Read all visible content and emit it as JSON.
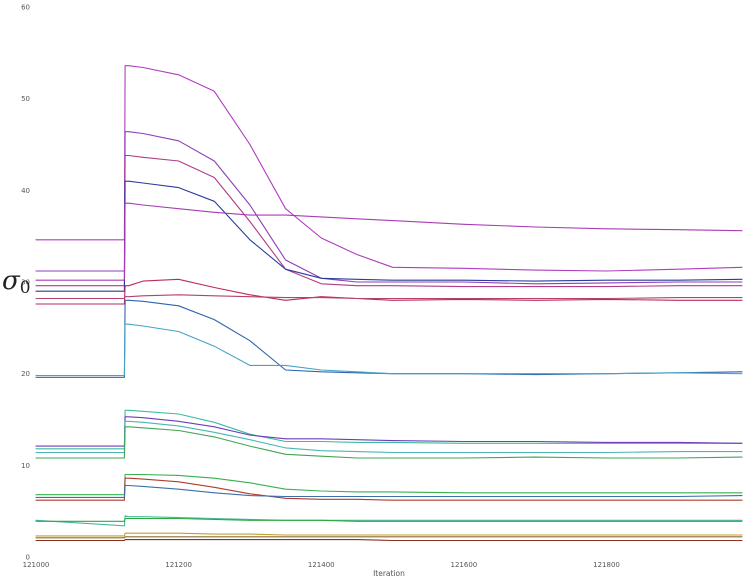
{
  "chart_data": {
    "type": "line",
    "xlabel": "Iteration",
    "ylabel": "σ",
    "ylabel_subscript": "0",
    "xlim": [
      121000,
      121990
    ],
    "ylim": [
      0,
      60
    ],
    "xticks": [
      121000,
      121200,
      121400,
      121600,
      121800
    ],
    "yticks": [
      0,
      10,
      20,
      30,
      40,
      50,
      60
    ],
    "grid": false,
    "x": [
      121000,
      121124,
      121125,
      121130,
      121150,
      121200,
      121250,
      121300,
      121350,
      121400,
      121450,
      121500,
      121600,
      121700,
      121800,
      121900,
      121990
    ],
    "series": [
      {
        "color": "#b03cc0",
        "values": [
          34.6,
          34.6,
          53.6,
          53.6,
          53.4,
          52.6,
          50.8,
          45.0,
          38.0,
          34.8,
          33.0,
          31.6,
          31.5,
          31.3,
          31.2,
          31.4,
          31.6
        ]
      },
      {
        "color": "#8a40b6",
        "values": [
          31.2,
          31.2,
          46.4,
          46.4,
          46.2,
          45.4,
          43.2,
          38.4,
          32.4,
          30.4,
          30.0,
          30.0,
          30.0,
          29.8,
          29.9,
          30.0,
          30.0
        ]
      },
      {
        "color": "#b03c84",
        "values": [
          29.6,
          29.6,
          43.8,
          43.8,
          43.6,
          43.2,
          41.4,
          36.6,
          31.4,
          29.8,
          29.6,
          29.6,
          29.5,
          29.5,
          29.5,
          29.6,
          29.6
        ]
      },
      {
        "color": "#2a3c9c",
        "values": [
          29.0,
          29.0,
          41.0,
          41.0,
          40.8,
          40.3,
          38.8,
          34.6,
          31.4,
          30.4,
          30.3,
          30.2,
          30.2,
          30.1,
          30.2,
          30.2,
          30.3
        ]
      },
      {
        "color": "#a83cb4",
        "values": [
          30.2,
          30.2,
          38.6,
          38.6,
          38.4,
          38.0,
          37.6,
          37.3,
          37.3,
          37.1,
          36.9,
          36.7,
          36.3,
          36.0,
          35.8,
          35.7,
          35.6
        ]
      },
      {
        "color": "#b62c5a",
        "values": [
          27.6,
          27.6,
          29.6,
          29.6,
          30.1,
          30.3,
          29.4,
          28.6,
          28.0,
          28.4,
          28.2,
          28.0,
          28.1,
          28.0,
          28.1,
          28.0,
          28.0
        ]
      },
      {
        "color": "#b64070",
        "values": [
          28.2,
          28.2,
          28.4,
          28.4,
          28.5,
          28.6,
          28.5,
          28.4,
          28.3,
          28.3,
          28.2,
          28.2,
          28.2,
          28.2,
          28.2,
          28.3,
          28.3
        ]
      },
      {
        "color": "#2e64b0",
        "values": [
          19.6,
          19.6,
          28.0,
          28.0,
          27.9,
          27.4,
          25.9,
          23.6,
          20.4,
          20.2,
          20.1,
          20.0,
          20.0,
          19.9,
          20.0,
          20.1,
          20.2
        ]
      },
      {
        "color": "#44a4c4",
        "values": [
          19.8,
          19.8,
          25.4,
          25.4,
          25.2,
          24.6,
          23.0,
          20.9,
          20.9,
          20.4,
          20.2,
          20.0,
          20.0,
          20.0,
          20.0,
          20.1,
          20.0
        ]
      },
      {
        "color": "#3ebaa0",
        "values": [
          11.8,
          11.8,
          16.0,
          16.0,
          15.9,
          15.6,
          14.7,
          13.4,
          12.6,
          12.6,
          12.5,
          12.5,
          12.4,
          12.4,
          12.4,
          12.4,
          12.4
        ]
      },
      {
        "color": "#6e3cbc",
        "values": [
          12.1,
          12.1,
          15.3,
          15.3,
          15.2,
          14.8,
          14.2,
          13.3,
          12.9,
          12.9,
          12.8,
          12.7,
          12.6,
          12.6,
          12.5,
          12.5,
          12.4
        ]
      },
      {
        "color": "#4eb4b4",
        "values": [
          11.4,
          11.4,
          14.8,
          14.8,
          14.7,
          14.3,
          13.6,
          12.8,
          11.9,
          11.6,
          11.5,
          11.4,
          11.4,
          11.4,
          11.4,
          11.5,
          11.5
        ]
      },
      {
        "color": "#40a454",
        "values": [
          10.8,
          10.8,
          14.2,
          14.2,
          14.1,
          13.8,
          13.1,
          12.1,
          11.2,
          11.0,
          10.8,
          10.8,
          10.8,
          10.9,
          10.8,
          10.8,
          10.9
        ]
      },
      {
        "color": "#38b04e",
        "values": [
          6.8,
          6.8,
          9.0,
          9.0,
          9.0,
          8.9,
          8.6,
          8.1,
          7.4,
          7.2,
          7.1,
          7.1,
          7.0,
          7.0,
          7.0,
          7.0,
          7.0
        ]
      },
      {
        "color": "#b03a30",
        "values": [
          6.2,
          6.2,
          8.6,
          8.6,
          8.5,
          8.2,
          7.6,
          6.9,
          6.4,
          6.3,
          6.3,
          6.2,
          6.2,
          6.2,
          6.2,
          6.2,
          6.2
        ]
      },
      {
        "color": "#3a70a8",
        "values": [
          6.5,
          6.5,
          7.8,
          7.8,
          7.7,
          7.4,
          7.0,
          6.7,
          6.6,
          6.6,
          6.6,
          6.6,
          6.6,
          6.6,
          6.6,
          6.6,
          6.7
        ]
      },
      {
        "color": "#4ab89a",
        "values": [
          4.0,
          3.4,
          4.5,
          4.4,
          4.4,
          4.3,
          4.2,
          4.1,
          4.0,
          4.0,
          4.0,
          4.0,
          4.0,
          4.0,
          4.0,
          4.0,
          4.0
        ]
      },
      {
        "color": "#2ca848",
        "values": [
          3.9,
          3.9,
          4.2,
          4.2,
          4.2,
          4.2,
          4.1,
          4.0,
          4.0,
          4.0,
          3.9,
          3.9,
          3.9,
          3.9,
          3.9,
          3.9,
          3.9
        ]
      },
      {
        "color": "#c0a030",
        "values": [
          2.3,
          2.3,
          2.6,
          2.6,
          2.6,
          2.6,
          2.5,
          2.5,
          2.4,
          2.4,
          2.4,
          2.4,
          2.4,
          2.4,
          2.4,
          2.4,
          2.4
        ]
      },
      {
        "color": "#8c6c30",
        "values": [
          2.1,
          2.1,
          2.2,
          2.2,
          2.2,
          2.2,
          2.2,
          2.2,
          2.2,
          2.2,
          2.2,
          2.2,
          2.2,
          2.2,
          2.2,
          2.2,
          2.2
        ]
      },
      {
        "color": "#8a3020",
        "values": [
          1.8,
          1.8,
          1.9,
          1.9,
          1.9,
          1.9,
          1.9,
          1.9,
          1.9,
          1.9,
          1.9,
          1.8,
          1.8,
          1.8,
          1.8,
          1.8,
          1.8
        ]
      }
    ]
  }
}
